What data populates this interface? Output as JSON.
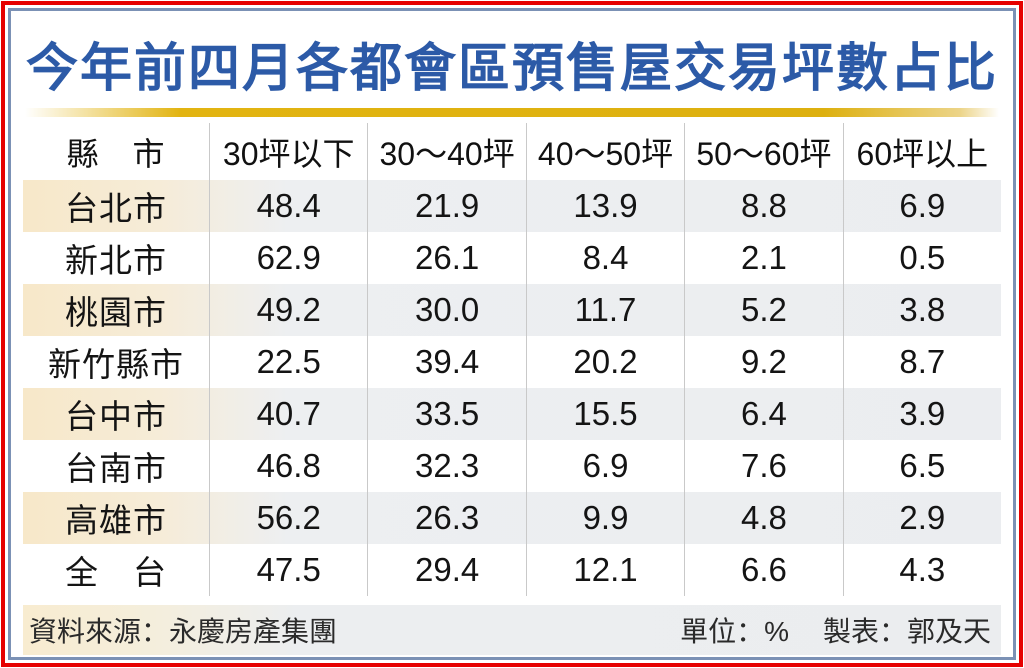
{
  "title": "今年前四月各都會區預售屋交易坪數占比",
  "table": {
    "columns": [
      "縣　市",
      "30坪以下",
      "30～40坪",
      "40～50坪",
      "50～60坪",
      "60坪以上"
    ],
    "rows": [
      {
        "city": "台北市",
        "values": [
          "48.4",
          "21.9",
          "13.9",
          "8.8",
          "6.9"
        ]
      },
      {
        "city": "新北市",
        "values": [
          "62.9",
          "26.1",
          "8.4",
          "2.1",
          "0.5"
        ]
      },
      {
        "city": "桃園市",
        "values": [
          "49.2",
          "30.0",
          "11.7",
          "5.2",
          "3.8"
        ]
      },
      {
        "city": "新竹縣市",
        "values": [
          "22.5",
          "39.4",
          "20.2",
          "9.2",
          "8.7"
        ]
      },
      {
        "city": "台中市",
        "values": [
          "40.7",
          "33.5",
          "15.5",
          "6.4",
          "3.9"
        ]
      },
      {
        "city": "台南市",
        "values": [
          "46.8",
          "32.3",
          "6.9",
          "7.6",
          "6.5"
        ]
      },
      {
        "city": "高雄市",
        "values": [
          "56.2",
          "26.3",
          "9.9",
          "4.8",
          "2.9"
        ]
      },
      {
        "city": "全　台",
        "values": [
          "47.5",
          "29.4",
          "12.1",
          "6.6",
          "4.3"
        ]
      }
    ]
  },
  "footer": {
    "source": "資料來源：永慶房產集團",
    "unit": "單位：%",
    "maker": "製表：郭及天"
  },
  "colors": {
    "title_blue": "#2c5aa7",
    "frame_red": "#e60000",
    "frame_blue": "#7b91b5",
    "gold_bar": "#ddb00f",
    "row_cream": "#f7e8c9",
    "row_gray": "#ebedf0",
    "divider": "#c9c9c9"
  },
  "chart_data": {
    "type": "table",
    "title": "今年前四月各都會區預售屋交易坪數占比",
    "unit": "%",
    "categories": [
      "30坪以下",
      "30～40坪",
      "40～50坪",
      "50～60坪",
      "60坪以上"
    ],
    "series": [
      {
        "name": "台北市",
        "values": [
          48.4,
          21.9,
          13.9,
          8.8,
          6.9
        ]
      },
      {
        "name": "新北市",
        "values": [
          62.9,
          26.1,
          8.4,
          2.1,
          0.5
        ]
      },
      {
        "name": "桃園市",
        "values": [
          49.2,
          30.0,
          11.7,
          5.2,
          3.8
        ]
      },
      {
        "name": "新竹縣市",
        "values": [
          22.5,
          39.4,
          20.2,
          9.2,
          8.7
        ]
      },
      {
        "name": "台中市",
        "values": [
          40.7,
          33.5,
          15.5,
          6.4,
          3.9
        ]
      },
      {
        "name": "台南市",
        "values": [
          46.8,
          32.3,
          6.9,
          7.6,
          6.5
        ]
      },
      {
        "name": "高雄市",
        "values": [
          56.2,
          26.3,
          9.9,
          4.8,
          2.9
        ]
      },
      {
        "name": "全台",
        "values": [
          47.5,
          29.4,
          12.1,
          6.6,
          4.3
        ]
      }
    ],
    "source": "永慶房產集團",
    "author": "郭及天"
  }
}
